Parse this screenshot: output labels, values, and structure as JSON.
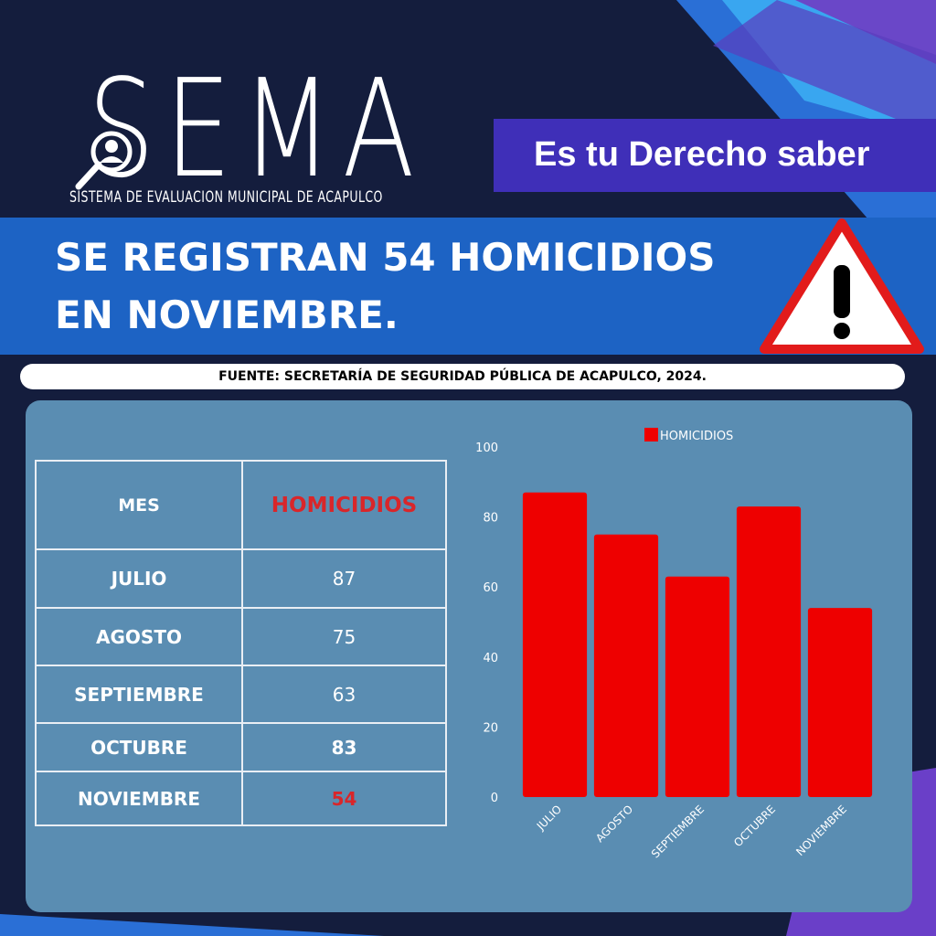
{
  "logo": {
    "word": "SEMA",
    "subtitle": "SISTEMA DE EVALUACION MUNICIPAL DE ACAPULCO"
  },
  "tagline": "Es tu Derecho saber",
  "headline": {
    "line1": "SE REGISTRAN 54 HOMICIDIOS",
    "line2": "EN NOVIEMBRE."
  },
  "source": "FUENTE: SECRETARÍA DE SEGURIDAD PÚBLICA DE ACAPULCO, 2024.",
  "table": {
    "headers": [
      "MES",
      "HOMICIDIOS"
    ],
    "rows": [
      {
        "mes": "JULIO",
        "valor": "87"
      },
      {
        "mes": "AGOSTO",
        "valor": "75"
      },
      {
        "mes": "SEPTIEMBRE",
        "valor": "63"
      },
      {
        "mes": "OCTUBRE",
        "valor": "83"
      },
      {
        "mes": "NOVIEMBRE",
        "valor": "54"
      }
    ]
  },
  "icons": [
    "magnifier-person-icon",
    "warning-icon"
  ],
  "colors": {
    "background": "#141d3d",
    "banner": "#1d63c4",
    "tagline": "#3f2fb8",
    "panel": "#5a8db2",
    "bar": "#ee0000",
    "highlight": "#d9262a"
  },
  "chart_data": {
    "type": "bar",
    "categories": [
      "JULIO",
      "AGOSTO",
      "SEPTIEMBRE",
      "OCTUBRE",
      "NOVIEMBRE"
    ],
    "series": [
      {
        "name": "HOMICIDIOS",
        "values": [
          87,
          75,
          63,
          83,
          54
        ]
      }
    ],
    "ylim": [
      0,
      100
    ],
    "yticks": [
      0,
      20,
      40,
      60,
      80,
      100
    ],
    "legend": "top",
    "grid": false
  }
}
